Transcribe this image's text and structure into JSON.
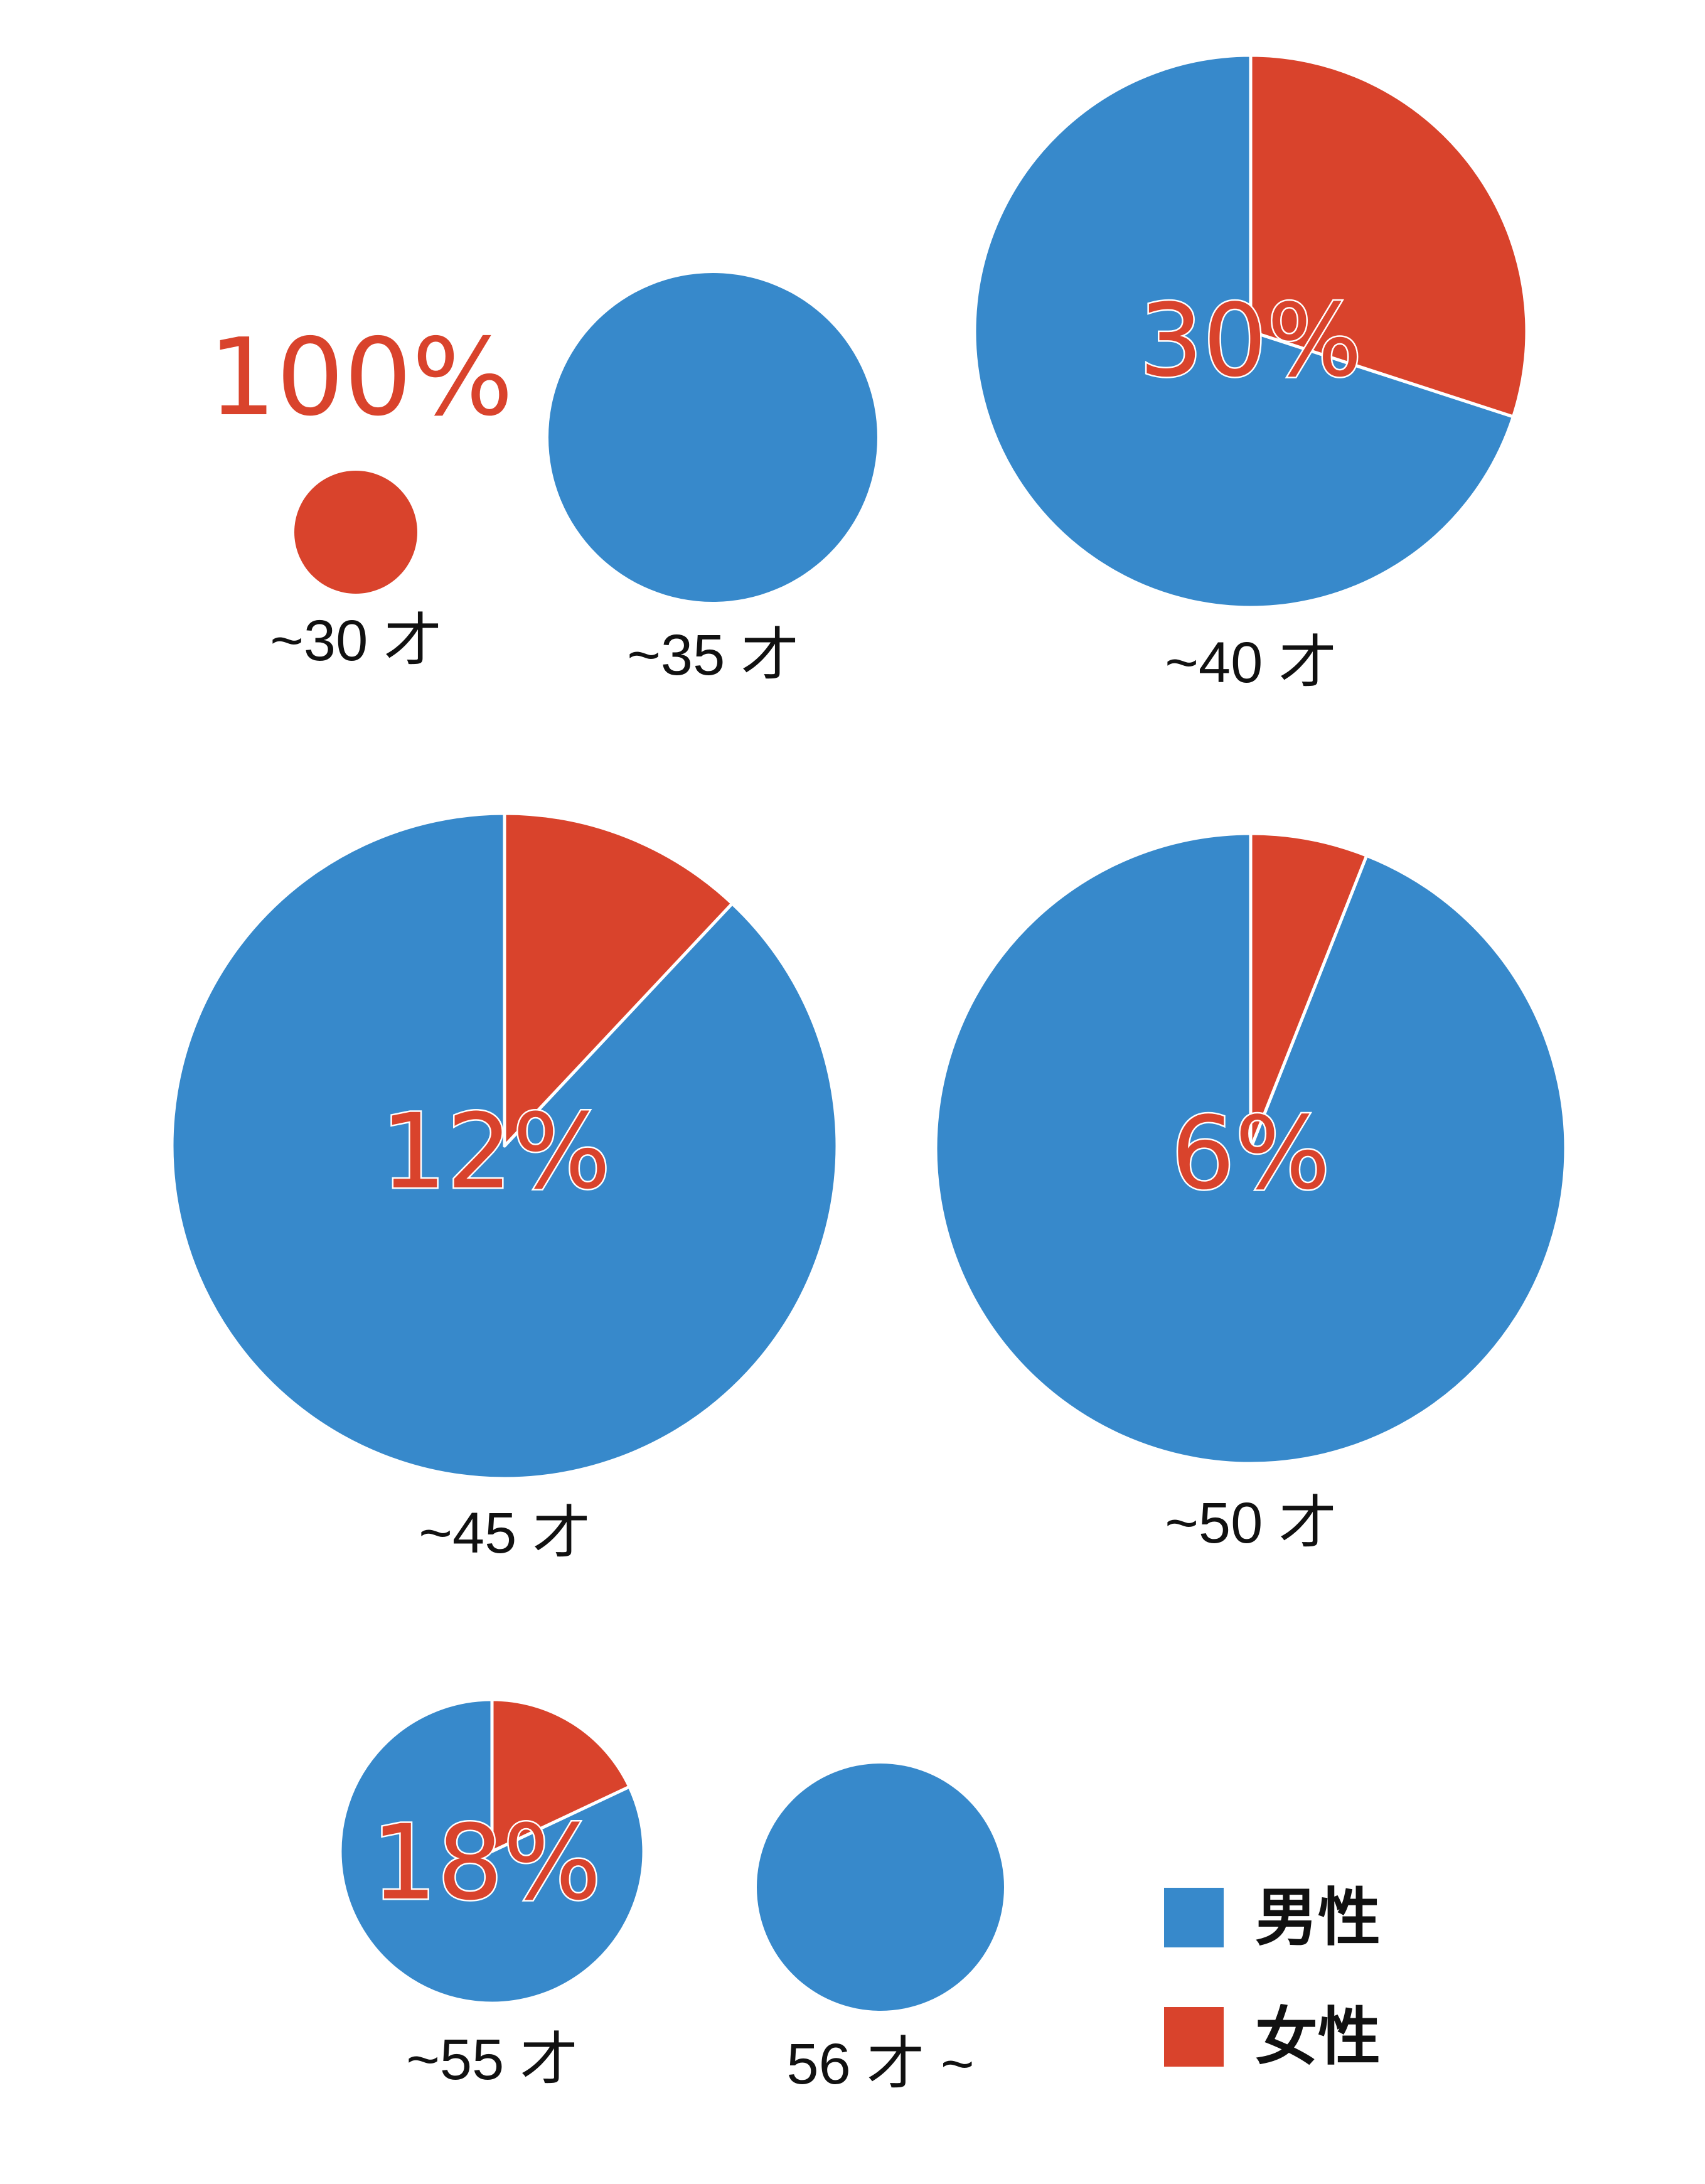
{
  "colors": {
    "male": "#3789CB",
    "female": "#D9432C",
    "text": "#111111",
    "background": "#FFFFFF"
  },
  "chart_data": {
    "type": "pie",
    "title": "",
    "series_names": [
      "男性",
      "女性"
    ],
    "groups": [
      {
        "label": "~30 才",
        "female_pct": 100,
        "male_pct": 0,
        "pct_label": "100%"
      },
      {
        "label": "~35 才",
        "female_pct": 0,
        "male_pct": 100,
        "pct_label": ""
      },
      {
        "label": "~40 才",
        "female_pct": 30,
        "male_pct": 70,
        "pct_label": "30%"
      },
      {
        "label": "~45 才",
        "female_pct": 12,
        "male_pct": 88,
        "pct_label": "12%"
      },
      {
        "label": "~50 才",
        "female_pct": 6,
        "male_pct": 94,
        "pct_label": "6%"
      },
      {
        "label": "~55 才",
        "female_pct": 18,
        "male_pct": 82,
        "pct_label": "18%"
      },
      {
        "label": "56 才 ~",
        "female_pct": 0,
        "male_pct": 100,
        "pct_label": ""
      }
    ],
    "legend": {
      "placement": "bottom-right",
      "items": [
        {
          "label": "男性",
          "color_key": "male"
        },
        {
          "label": "女性",
          "color_key": "female"
        }
      ]
    }
  }
}
